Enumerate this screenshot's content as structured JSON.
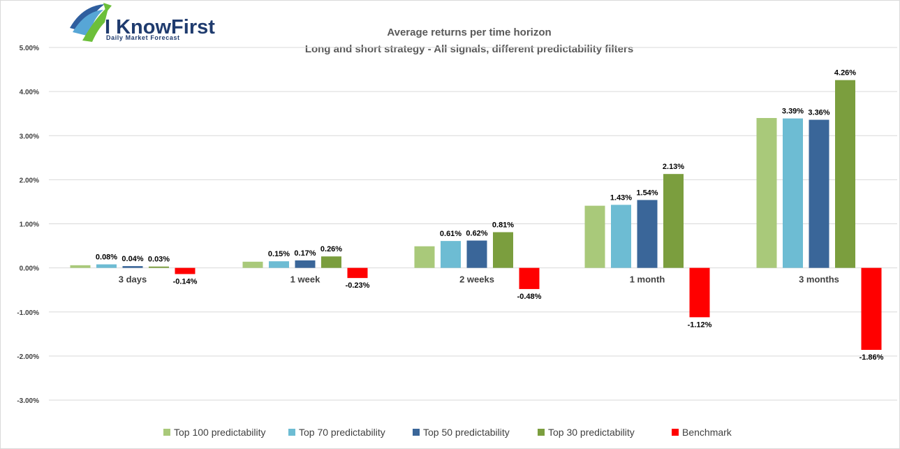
{
  "logo": {
    "name": "I KnowFirst",
    "tagline": "Daily Market Forecast"
  },
  "colors": {
    "top100": "#a9c97a",
    "top70": "#6dbcd3",
    "top50": "#3a6699",
    "top30": "#7b9e3e",
    "benchmark": "#ff0000",
    "gridline": "#d9d9d9",
    "axis_text": "#404040"
  },
  "chart_data": {
    "type": "bar",
    "title": "Average returns per time horizon",
    "subtitle": "Long and short strategy - All signals, different predictability filters",
    "xlabel": "",
    "ylabel": "",
    "ylim": [
      -0.03,
      0.05
    ],
    "yticks": [
      0.05,
      0.04,
      0.03,
      0.02,
      0.01,
      0.0,
      -0.01,
      -0.02,
      -0.03
    ],
    "ytick_labels": [
      "5.00%",
      "4.00%",
      "3.00%",
      "2.00%",
      "1.00%",
      "0.00%",
      "-1.00%",
      "-2.00%",
      "-3.00%"
    ],
    "grid": true,
    "legend_position": "bottom",
    "categories": [
      "3 days",
      "1 week",
      "2 weeks",
      "1 month",
      "3 months"
    ],
    "series": [
      {
        "name": "Top 100 predictability",
        "color_key": "top100",
        "values": [
          0.0006,
          0.0014,
          0.0049,
          0.0141,
          0.034
        ],
        "labels": [
          "",
          "",
          "",
          "",
          ""
        ]
      },
      {
        "name": "Top 70 predictability",
        "color_key": "top70",
        "values": [
          0.0008,
          0.0015,
          0.0061,
          0.0143,
          0.0339
        ],
        "labels": [
          "0.08%",
          "0.15%",
          "0.61%",
          "1.43%",
          "3.39%"
        ]
      },
      {
        "name": "Top 50 predictability",
        "color_key": "top50",
        "values": [
          0.0004,
          0.0017,
          0.0062,
          0.0154,
          0.0336
        ],
        "labels": [
          "0.04%",
          "0.17%",
          "0.62%",
          "1.54%",
          "3.36%"
        ]
      },
      {
        "name": "Top 30 predictability",
        "color_key": "top30",
        "values": [
          0.0003,
          0.0026,
          0.0081,
          0.0213,
          0.0426
        ],
        "labels": [
          "0.03%",
          "0.26%",
          "0.81%",
          "2.13%",
          "4.26%"
        ]
      },
      {
        "name": "Benchmark",
        "color_key": "benchmark",
        "values": [
          -0.0014,
          -0.0023,
          -0.0048,
          -0.0112,
          -0.0186
        ],
        "labels": [
          "-0.14%",
          "-0.23%",
          "-0.48%",
          "-1.12%",
          "-1.86%"
        ]
      }
    ]
  }
}
